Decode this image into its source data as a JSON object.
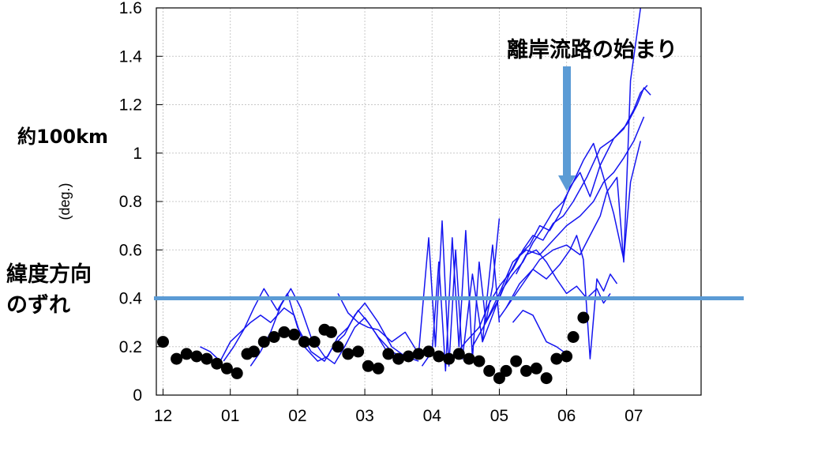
{
  "chart_data": {
    "type": "line",
    "title": "",
    "xlabel": "",
    "ylabel": "(deg.)",
    "xlim": [
      -0.1,
      8.0
    ],
    "ylim": [
      0,
      1.6
    ],
    "x_ticks": [
      "12",
      "01",
      "02",
      "03",
      "04",
      "05",
      "06",
      "07"
    ],
    "y_ticks": [
      "0",
      "0.2",
      "0.4",
      "0.6",
      "0.8",
      "1",
      "1.2",
      "1.4",
      "1.6"
    ],
    "grid": true,
    "colors": {
      "lines": "#1515f0",
      "points": "#000000",
      "threshold": "#5b9bd5",
      "arrow": "#5b9bd5"
    },
    "series": [
      {
        "values": [
          [
            0.55,
            0.2
          ],
          [
            0.7,
            0.18
          ],
          [
            0.85,
            0.14
          ],
          [
            1.0,
            0.22
          ],
          [
            1.15,
            0.26
          ],
          [
            1.3,
            0.3
          ],
          [
            1.45,
            0.33
          ],
          [
            1.6,
            0.3
          ],
          [
            1.8,
            0.36
          ],
          [
            1.95,
            0.33
          ],
          [
            2.1,
            0.2
          ],
          [
            2.3,
            0.14
          ],
          [
            2.45,
            0.16
          ],
          [
            2.6,
            0.24
          ],
          [
            2.75,
            0.28
          ],
          [
            2.9,
            0.35
          ],
          [
            3.05,
            0.3
          ],
          [
            3.2,
            0.24
          ],
          [
            3.4,
            0.18
          ],
          [
            3.6,
            0.15
          ]
        ]
      },
      {
        "values": [
          [
            0.9,
            0.14
          ],
          [
            1.05,
            0.2
          ],
          [
            1.2,
            0.27
          ],
          [
            1.35,
            0.36
          ],
          [
            1.5,
            0.44
          ],
          [
            1.7,
            0.35
          ],
          [
            1.85,
            0.42
          ],
          [
            2.0,
            0.28
          ],
          [
            2.2,
            0.18
          ],
          [
            2.4,
            0.14
          ],
          [
            2.55,
            0.21
          ],
          [
            2.7,
            0.25
          ],
          [
            2.85,
            0.33
          ],
          [
            3.0,
            0.38
          ],
          [
            3.2,
            0.3
          ],
          [
            3.4,
            0.2
          ],
          [
            3.6,
            0.16
          ],
          [
            3.8,
            0.14
          ]
        ]
      },
      {
        "values": [
          [
            1.3,
            0.12
          ],
          [
            1.45,
            0.18
          ],
          [
            1.6,
            0.26
          ],
          [
            1.75,
            0.37
          ],
          [
            1.9,
            0.44
          ],
          [
            2.05,
            0.36
          ],
          [
            2.2,
            0.24
          ],
          [
            2.4,
            0.16
          ],
          [
            2.55,
            0.13
          ],
          [
            2.7,
            0.2
          ],
          [
            2.85,
            0.28
          ],
          [
            3.0,
            0.32
          ],
          [
            3.15,
            0.26
          ],
          [
            3.35,
            0.17
          ],
          [
            3.55,
            0.13
          ]
        ]
      },
      {
        "values": [
          [
            2.6,
            0.42
          ],
          [
            2.75,
            0.34
          ],
          [
            2.9,
            0.3
          ],
          [
            3.05,
            0.28
          ],
          [
            3.2,
            0.27
          ],
          [
            3.4,
            0.22
          ],
          [
            3.6,
            0.26
          ],
          [
            3.8,
            0.17
          ],
          [
            3.95,
            0.65
          ],
          [
            4.05,
            0.2
          ],
          [
            4.15,
            0.72
          ],
          [
            4.25,
            0.12
          ],
          [
            4.35,
            0.6
          ],
          [
            4.45,
            0.15
          ],
          [
            4.6,
            0.5
          ],
          [
            4.75,
            0.22
          ],
          [
            4.9,
            0.62
          ],
          [
            5.0,
            0.3
          ]
        ]
      },
      {
        "values": [
          [
            3.85,
            0.12
          ],
          [
            4.0,
            0.18
          ],
          [
            4.1,
            0.55
          ],
          [
            4.2,
            0.1
          ],
          [
            4.3,
            0.65
          ],
          [
            4.4,
            0.2
          ],
          [
            4.5,
            0.68
          ],
          [
            4.6,
            0.15
          ],
          [
            4.7,
            0.55
          ],
          [
            4.8,
            0.3
          ],
          [
            4.9,
            0.45
          ],
          [
            5.0,
            0.73
          ]
        ]
      },
      {
        "values": [
          [
            4.3,
            0.15
          ],
          [
            4.5,
            0.22
          ],
          [
            4.7,
            0.28
          ],
          [
            4.85,
            0.38
          ],
          [
            5.0,
            0.45
          ],
          [
            5.2,
            0.52
          ],
          [
            5.35,
            0.6
          ],
          [
            5.5,
            0.66
          ],
          [
            5.65,
            0.64
          ],
          [
            5.8,
            0.71
          ],
          [
            5.95,
            0.74
          ],
          [
            6.1,
            0.8
          ],
          [
            6.3,
            0.9
          ],
          [
            6.5,
            1.02
          ],
          [
            6.7,
            1.06
          ],
          [
            6.9,
            1.12
          ],
          [
            7.05,
            1.2
          ],
          [
            7.15,
            1.27
          ],
          [
            7.25,
            1.24
          ]
        ]
      },
      {
        "values": [
          [
            4.6,
            0.2
          ],
          [
            4.8,
            0.3
          ],
          [
            5.0,
            0.4
          ],
          [
            5.15,
            0.5
          ],
          [
            5.3,
            0.58
          ],
          [
            5.45,
            0.62
          ],
          [
            5.6,
            0.7
          ],
          [
            5.75,
            0.68
          ],
          [
            5.9,
            0.75
          ],
          [
            6.05,
            0.86
          ],
          [
            6.2,
            0.92
          ],
          [
            6.35,
            0.82
          ],
          [
            6.5,
            0.95
          ],
          [
            6.7,
            1.06
          ],
          [
            6.85,
            1.1
          ],
          [
            7.0,
            1.18
          ],
          [
            7.1,
            1.25
          ],
          [
            7.2,
            1.28
          ]
        ]
      },
      {
        "values": [
          [
            4.75,
            0.22
          ],
          [
            4.9,
            0.33
          ],
          [
            5.05,
            0.44
          ],
          [
            5.2,
            0.5
          ],
          [
            5.35,
            0.55
          ],
          [
            5.5,
            0.63
          ],
          [
            5.65,
            0.69
          ],
          [
            5.8,
            0.76
          ],
          [
            5.95,
            0.8
          ],
          [
            6.1,
            0.88
          ],
          [
            6.25,
            0.97
          ],
          [
            6.4,
            1.04
          ],
          [
            6.55,
            0.9
          ],
          [
            6.7,
            0.75
          ],
          [
            6.85,
            0.56
          ],
          [
            6.95,
            0.88
          ],
          [
            7.1,
            1.05
          ]
        ]
      },
      {
        "values": [
          [
            4.8,
            0.3
          ],
          [
            5.0,
            0.42
          ],
          [
            5.2,
            0.55
          ],
          [
            5.4,
            0.6
          ],
          [
            5.6,
            0.58
          ],
          [
            5.8,
            0.64
          ],
          [
            6.0,
            0.7
          ],
          [
            6.2,
            0.74
          ],
          [
            6.4,
            0.8
          ],
          [
            6.55,
            0.88
          ],
          [
            6.7,
            0.92
          ],
          [
            6.85,
            0.98
          ],
          [
            7.0,
            1.05
          ],
          [
            7.15,
            1.15
          ]
        ]
      },
      {
        "values": [
          [
            5.0,
            0.32
          ],
          [
            5.2,
            0.4
          ],
          [
            5.4,
            0.48
          ],
          [
            5.6,
            0.56
          ],
          [
            5.8,
            0.6
          ],
          [
            6.0,
            0.62
          ],
          [
            6.2,
            0.58
          ],
          [
            6.35,
            0.66
          ],
          [
            6.5,
            0.74
          ],
          [
            6.6,
            0.84
          ],
          [
            6.75,
            0.9
          ],
          [
            6.85,
            0.55
          ],
          [
            6.95,
            1.3
          ],
          [
            7.05,
            1.5
          ],
          [
            7.1,
            1.6
          ]
        ]
      },
      {
        "values": [
          [
            5.1,
            0.36
          ],
          [
            5.3,
            0.46
          ],
          [
            5.5,
            0.52
          ],
          [
            5.7,
            0.48
          ],
          [
            5.9,
            0.54
          ],
          [
            6.05,
            0.6
          ],
          [
            6.15,
            0.66
          ],
          [
            6.25,
            0.56
          ],
          [
            6.35,
            0.15
          ],
          [
            6.45,
            0.48
          ],
          [
            6.55,
            0.43
          ],
          [
            6.65,
            0.5
          ],
          [
            6.75,
            0.46
          ]
        ]
      },
      {
        "values": [
          [
            5.2,
            0.3
          ],
          [
            5.35,
            0.35
          ],
          [
            5.5,
            0.33
          ],
          [
            5.7,
            0.22
          ],
          [
            5.85,
            0.2
          ],
          [
            6.0,
            0.17
          ]
        ]
      },
      {
        "values": [
          [
            5.25,
            0.5
          ],
          [
            5.4,
            0.58
          ],
          [
            5.55,
            0.6
          ],
          [
            5.7,
            0.55
          ],
          [
            5.85,
            0.48
          ],
          [
            6.0,
            0.42
          ],
          [
            6.15,
            0.45
          ],
          [
            6.3,
            0.4
          ],
          [
            6.45,
            0.44
          ],
          [
            6.55,
            0.38
          ],
          [
            6.65,
            0.42
          ]
        ]
      }
    ],
    "points": [
      [
        0.0,
        0.22
      ],
      [
        0.2,
        0.15
      ],
      [
        0.35,
        0.17
      ],
      [
        0.5,
        0.16
      ],
      [
        0.65,
        0.15
      ],
      [
        0.8,
        0.13
      ],
      [
        0.95,
        0.11
      ],
      [
        1.1,
        0.09
      ],
      [
        1.25,
        0.17
      ],
      [
        1.35,
        0.18
      ],
      [
        1.5,
        0.22
      ],
      [
        1.65,
        0.24
      ],
      [
        1.8,
        0.26
      ],
      [
        1.95,
        0.25
      ],
      [
        2.1,
        0.22
      ],
      [
        2.25,
        0.22
      ],
      [
        2.4,
        0.27
      ],
      [
        2.5,
        0.26
      ],
      [
        2.6,
        0.2
      ],
      [
        2.75,
        0.17
      ],
      [
        2.9,
        0.18
      ],
      [
        3.05,
        0.12
      ],
      [
        3.2,
        0.11
      ],
      [
        3.35,
        0.17
      ],
      [
        3.5,
        0.15
      ],
      [
        3.65,
        0.16
      ],
      [
        3.8,
        0.17
      ],
      [
        3.95,
        0.18
      ],
      [
        4.1,
        0.16
      ],
      [
        4.25,
        0.15
      ],
      [
        4.4,
        0.17
      ],
      [
        4.55,
        0.15
      ],
      [
        4.7,
        0.14
      ],
      [
        4.85,
        0.1
      ],
      [
        5.0,
        0.07
      ],
      [
        5.1,
        0.1
      ],
      [
        5.25,
        0.14
      ],
      [
        5.4,
        0.1
      ],
      [
        5.55,
        0.11
      ],
      [
        5.7,
        0.07
      ],
      [
        5.85,
        0.15
      ],
      [
        6.0,
        0.16
      ],
      [
        6.1,
        0.24
      ],
      [
        6.25,
        0.32
      ]
    ],
    "threshold_y": 0.4,
    "annotations": {
      "arrow_label": "離岸流路の始まり",
      "scale_label": "約100km",
      "offset_label_line1": "緯度方向",
      "offset_label_line2": "のずれ"
    }
  }
}
